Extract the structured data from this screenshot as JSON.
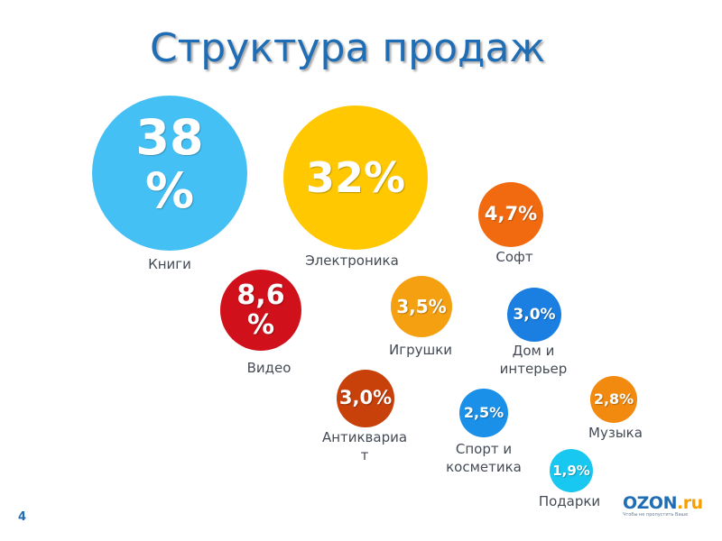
{
  "title": "Структура продаж",
  "page_number": "4",
  "logo": {
    "text": "OZON.ru",
    "tagline": "Чтобы не пропустить Ваше"
  },
  "chart_data": {
    "type": "bubble",
    "title": "Структура продаж",
    "unit": "%",
    "categories": [
      "Книги",
      "Электроника",
      "Софт",
      "Видео",
      "Игрушки",
      "Дом и интерьер",
      "Антиквариат",
      "Спорт и косметика",
      "Музыка",
      "Подарки"
    ],
    "values": [
      38,
      32,
      4.7,
      8.6,
      3.5,
      3.0,
      3.0,
      2.5,
      2.8,
      1.9
    ],
    "value_labels": [
      "38 %",
      "32%",
      "4,7%",
      "8,6 %",
      "3,5%",
      "3,0%",
      "3,0%",
      "2,5%",
      "2,8%",
      "1,9%"
    ],
    "label_lines": [
      [
        "Книги"
      ],
      [
        "Электроника"
      ],
      [
        "Софт"
      ],
      [
        "Видео"
      ],
      [
        "Игрушки"
      ],
      [
        "Дом и",
        "интерьер"
      ],
      [
        "Антиквариа",
        "т"
      ],
      [
        "Спорт и",
        "косметика"
      ],
      [
        "Музыка"
      ],
      [
        "Подарки"
      ]
    ],
    "colors": [
      "#45c0f5",
      "#ffc800",
      "#f26a10",
      "#d0101a",
      "#f5a010",
      "#1a7fe0",
      "#c8400a",
      "#1a90e8",
      "#f28a10",
      "#18c8f0"
    ]
  }
}
